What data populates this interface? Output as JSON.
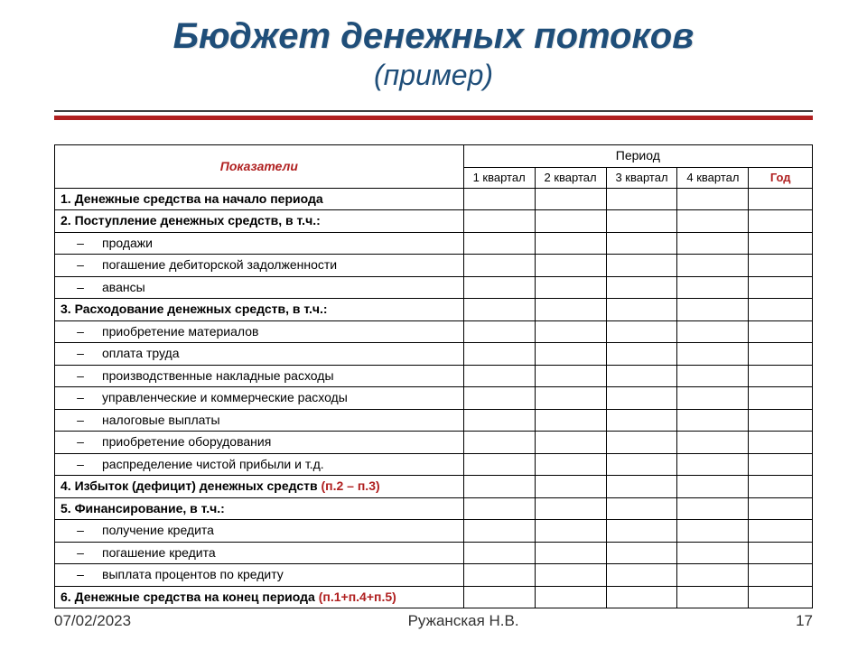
{
  "title": {
    "main": "Бюджет денежных потоков",
    "sub": "(пример)"
  },
  "colors": {
    "title_color": "#1f4e79",
    "accent_color": "#b02020",
    "divider_thin": "#404040",
    "border_color": "#000000",
    "background": "#ffffff"
  },
  "table": {
    "header_indicators": "Показатели",
    "header_period": "Период",
    "sub_periods": [
      "1 квартал",
      "2 квартал",
      "3 квартал",
      "4 квартал"
    ],
    "sub_period_year": "Год",
    "rows": [
      {
        "type": "bold",
        "text": "1. Денежные средства на начало периода"
      },
      {
        "type": "bold",
        "text": "2. Поступление денежных средств, в т.ч.:"
      },
      {
        "type": "sub",
        "text": "продажи"
      },
      {
        "type": "sub",
        "text": "погашение дебиторской задолженности"
      },
      {
        "type": "sub",
        "text": "авансы"
      },
      {
        "type": "bold",
        "text": "3. Расходование денежных средств, в т.ч.:"
      },
      {
        "type": "sub",
        "text": "приобретение материалов"
      },
      {
        "type": "sub",
        "text": "оплата труда"
      },
      {
        "type": "sub",
        "text": "производственные накладные расходы"
      },
      {
        "type": "sub",
        "text": "управленческие и коммерческие расходы"
      },
      {
        "type": "sub",
        "text": "налоговые выплаты"
      },
      {
        "type": "sub",
        "text": "приобретение оборудования"
      },
      {
        "type": "sub",
        "text": "распределение чистой прибыли и т.д."
      },
      {
        "type": "bold",
        "text": "4. Избыток (дефицит) денежных средств ",
        "accent_suffix": "(п.2 – п.3)"
      },
      {
        "type": "bold",
        "text": "5. Финансирование, в т.ч.:"
      },
      {
        "type": "sub",
        "text": "получение кредита"
      },
      {
        "type": "sub",
        "text": "погашение кредита"
      },
      {
        "type": "sub",
        "text": "выплата процентов по кредиту"
      },
      {
        "type": "bold",
        "text": "6. Денежные средства на конец периода ",
        "accent_suffix": "(п.1+п.4+п.5)"
      }
    ]
  },
  "footer": {
    "date": "07/02/2023",
    "author": "Ружанская Н.В.",
    "page": "17"
  }
}
